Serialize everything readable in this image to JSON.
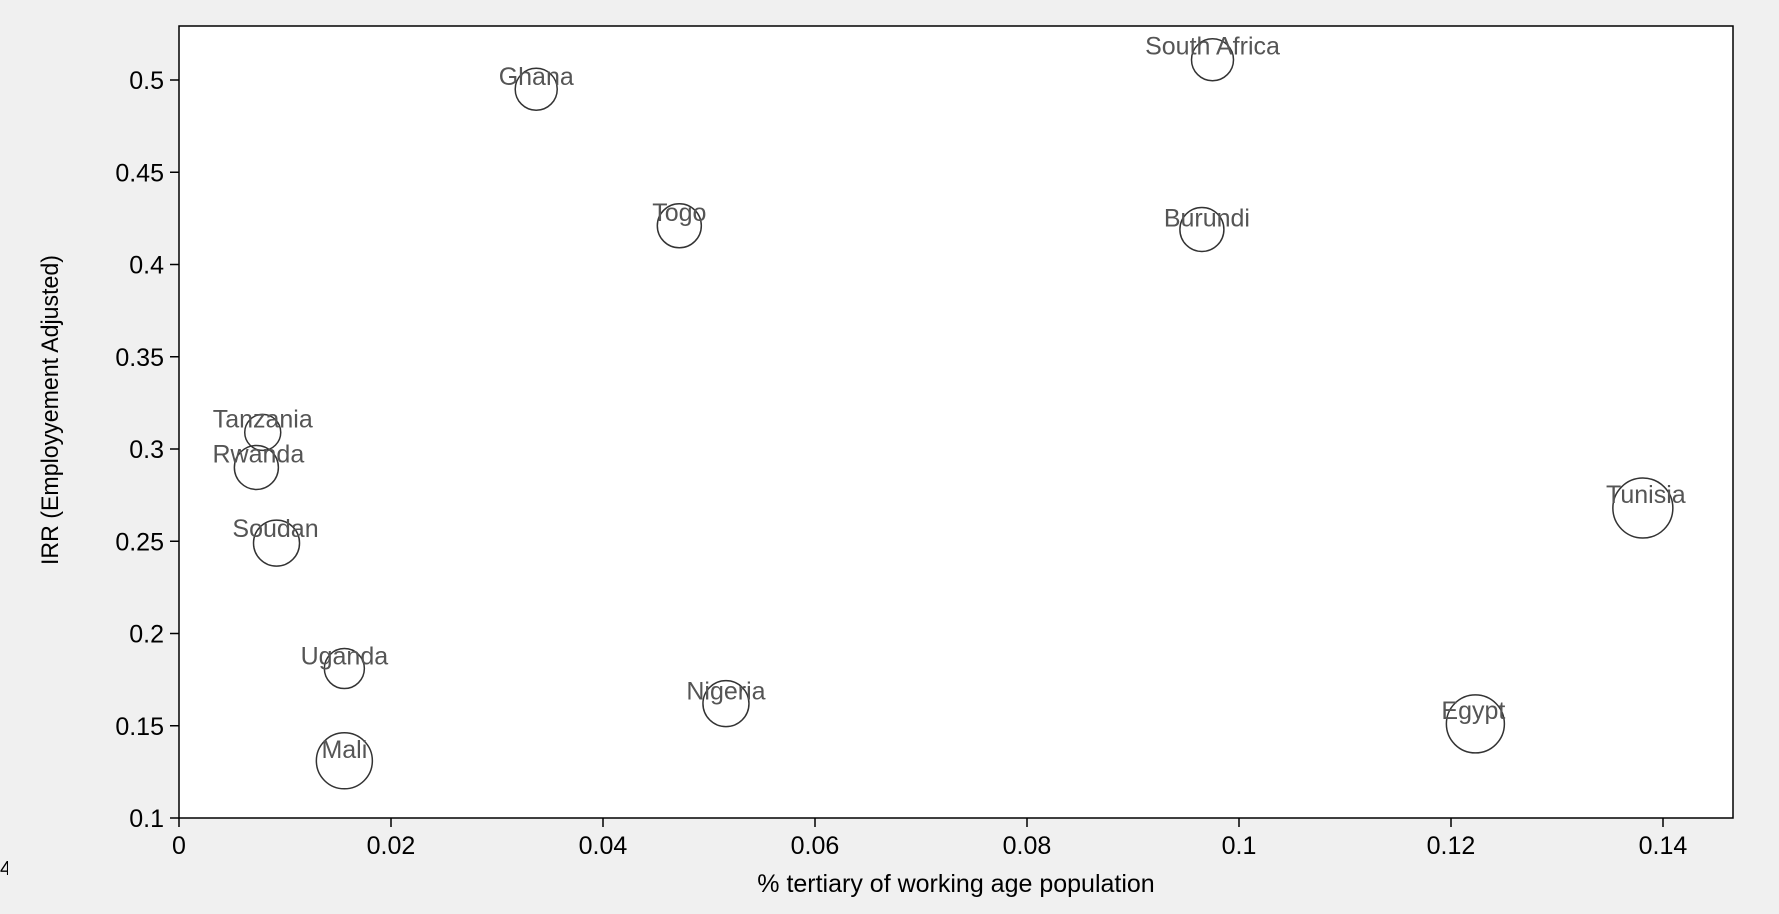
{
  "chart_data": {
    "type": "scatter",
    "title": "",
    "xlabel": "% tertiary of working age population",
    "ylabel": "IRR (Employyement Adjusted)",
    "xlim": [
      0,
      0.145
    ],
    "ylim": [
      0.1,
      0.53
    ],
    "x_ticks": [
      0,
      0.02,
      0.04,
      0.06,
      0.08,
      0.1,
      0.12,
      0.14
    ],
    "x_tick_labels": [
      "0",
      "0.02",
      "0.04",
      "0.06",
      "0.08",
      "0.1",
      "0.12",
      "0.14"
    ],
    "y_ticks": [
      0.1,
      0.15,
      0.2,
      0.25,
      0.3,
      0.35,
      0.4,
      0.45,
      0.5
    ],
    "y_tick_labels": [
      "0.1",
      "0.15",
      "0.2",
      "0.25",
      "0.3",
      "0.35",
      "0.4",
      "0.45",
      "0.5"
    ],
    "grid": false,
    "legend": "none",
    "marker": "hollow circle (size varies)",
    "points": [
      {
        "label": "South Africa",
        "x": 0.0975,
        "y": 0.511
      },
      {
        "label": "Ghana",
        "x": 0.0337,
        "y": 0.495
      },
      {
        "label": "Togo",
        "x": 0.0472,
        "y": 0.421
      },
      {
        "label": "Burundi",
        "x": 0.0965,
        "y": 0.419
      },
      {
        "label": "Tanzania",
        "x": 0.0079,
        "y": 0.309
      },
      {
        "label": "Rwanda",
        "x": 0.0073,
        "y": 0.29
      },
      {
        "label": "Tunisia",
        "x": 0.1381,
        "y": 0.268
      },
      {
        "label": "Soudan",
        "x": 0.0092,
        "y": 0.249
      },
      {
        "label": "Uganda",
        "x": 0.0156,
        "y": 0.181
      },
      {
        "label": "Nigeria",
        "x": 0.0516,
        "y": 0.162
      },
      {
        "label": "Egypt",
        "x": 0.1223,
        "y": 0.151
      },
      {
        "label": "Mali",
        "x": 0.0156,
        "y": 0.131
      }
    ],
    "colors": {
      "background": "#f0f0f0",
      "plot_area": "#ffffff",
      "axis": "#000000",
      "marker": "#333333",
      "point_label": "#555555"
    }
  },
  "edge_text": "4"
}
